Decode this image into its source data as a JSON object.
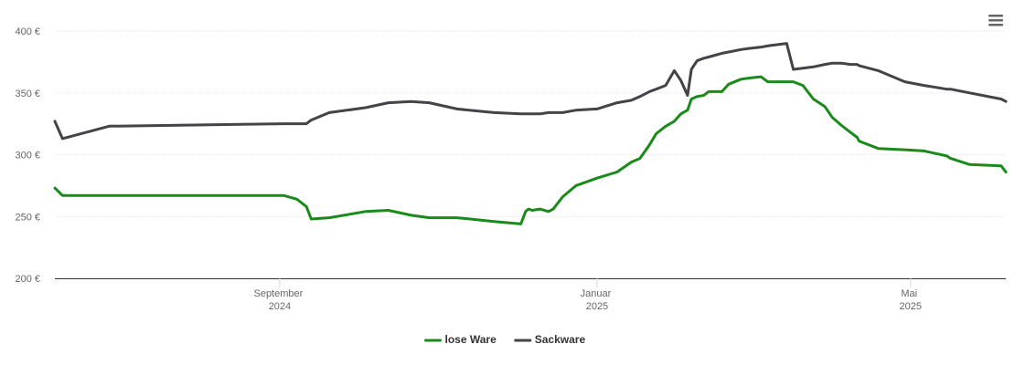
{
  "chart_data": {
    "type": "line",
    "x": [
      2024.431,
      2024.439,
      2024.488,
      2024.671,
      2024.685,
      2024.695,
      2024.7,
      2024.719,
      2024.757,
      2024.781,
      2024.805,
      2024.824,
      2024.853,
      2024.892,
      2024.92,
      2024.925,
      2024.928,
      2024.932,
      2024.94,
      2024.949,
      2024.954,
      2024.964,
      2024.978,
      2025.0,
      2025.021,
      2025.036,
      2025.045,
      2025.055,
      2025.062,
      2025.072,
      2025.081,
      2025.088,
      2025.095,
      2025.099,
      2025.105,
      2025.112,
      2025.117,
      2025.131,
      2025.138,
      2025.151,
      2025.16,
      2025.172,
      2025.179,
      2025.199,
      2025.206,
      2025.216,
      2025.227,
      2025.239,
      2025.247,
      2025.256,
      2025.266,
      2025.273,
      2025.275,
      2025.295,
      2025.323,
      2025.343,
      2025.367,
      2025.371,
      2025.391,
      2025.424,
      2025.429
    ],
    "series": [
      {
        "name": "lose Ware",
        "color": "#1a8a1a",
        "values": [
          273,
          267,
          267,
          267,
          264,
          258,
          248,
          249,
          254,
          255,
          251,
          249,
          249,
          246,
          244,
          254,
          256,
          255,
          256,
          254,
          256,
          266,
          275,
          281,
          286,
          294,
          297,
          308,
          317,
          323,
          327,
          333,
          336,
          345,
          347,
          348,
          351,
          351,
          357,
          361,
          362,
          363,
          359,
          359,
          359,
          356,
          345,
          339,
          330,
          324,
          318,
          314,
          311,
          305,
          304,
          303,
          299,
          297,
          292,
          291,
          286
        ]
      },
      {
        "name": "Sackware",
        "color": "#434348",
        "values": [
          327,
          313,
          323,
          325,
          325,
          325,
          328,
          334,
          338,
          342,
          343,
          342,
          337,
          334,
          333,
          333,
          333,
          333,
          333,
          334,
          334,
          334,
          336,
          337,
          342,
          344,
          347,
          351,
          353,
          356,
          368,
          360,
          348,
          369,
          376,
          378,
          379,
          382,
          383,
          385,
          386,
          387,
          388,
          390,
          369,
          370,
          371,
          373,
          374,
          374,
          373,
          373,
          372,
          368,
          359,
          356,
          353,
          353,
          350,
          345,
          343
        ]
      }
    ],
    "xlim": [
      2024.431,
      2025.429
    ],
    "xticks": [
      {
        "value": 2024.667,
        "label": "September 2024"
      },
      {
        "value": 2025.0,
        "label": "Januar 2025"
      },
      {
        "value": 2025.329,
        "label": "Mai 2025"
      }
    ],
    "ylim": [
      200,
      400
    ],
    "yticks": [
      {
        "value": 200,
        "label": "200 €"
      },
      {
        "value": 250,
        "label": "250 €"
      },
      {
        "value": 300,
        "label": "300 €"
      },
      {
        "value": 350,
        "label": "350 €"
      },
      {
        "value": 400,
        "label": "400 €"
      }
    ],
    "grid": true,
    "legend": "bottom"
  }
}
